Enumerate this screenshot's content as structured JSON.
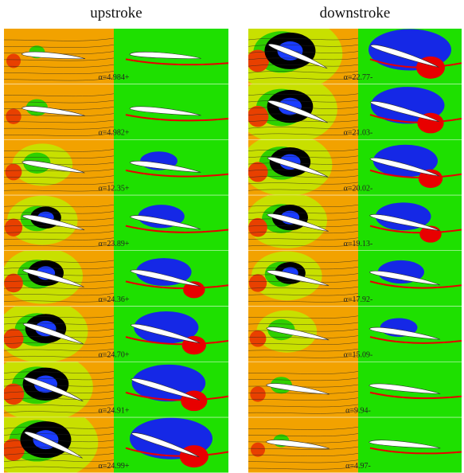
{
  "titles": {
    "upstroke": "upstroke",
    "downstroke": "downstroke"
  },
  "panels": {
    "upstroke": [
      "α=4.984+",
      "α=4.982+",
      "α=12.35+",
      "α=23.89+",
      "α=24.36+",
      "α=24.70+",
      "α=24.91+",
      "α=24.99+"
    ],
    "downstroke": [
      "α=22.77-",
      "α=21.03-",
      "α=20.02-",
      "α=19.13-",
      "α=17.92-",
      "α=15.09-",
      "α=9.94-",
      "α=4.97-"
    ]
  }
}
